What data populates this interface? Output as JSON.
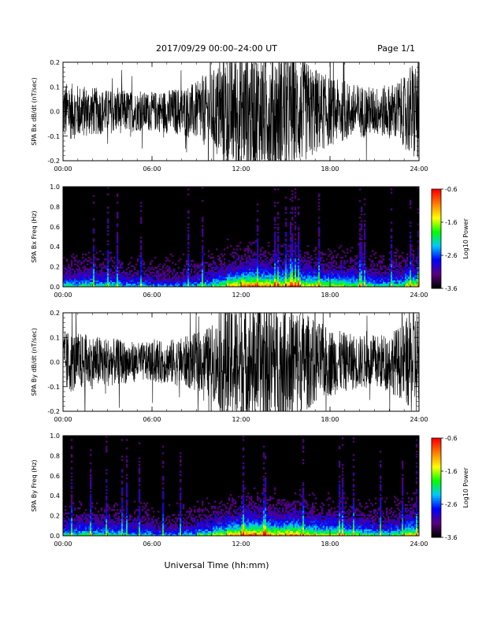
{
  "header": {
    "title": "2017/09/29  00:00–24:00 UT",
    "page": "Page 1/1"
  },
  "chart_data": [
    {
      "type": "line",
      "ylabel": "SPA Bx dB/dt (nT/sec)",
      "ylim": [
        -0.2,
        0.2
      ],
      "yticks": [
        "0.2",
        "0.1",
        "0.0",
        "-0.1",
        "-0.2"
      ],
      "xlim_hours": [
        0,
        24
      ],
      "xticks": [
        "00:00",
        "06:00",
        "12:00",
        "18:00",
        "24:00"
      ],
      "color": "#000000",
      "envelope": {
        "x_hours": [
          0,
          1,
          2,
          3,
          4,
          5,
          6,
          7,
          8,
          9,
          10,
          10.5,
          11,
          12,
          13,
          14,
          15,
          16,
          17,
          18,
          19,
          20,
          21,
          22,
          23,
          23.5,
          24
        ],
        "amplitude": [
          0.12,
          0.11,
          0.1,
          0.09,
          0.09,
          0.08,
          0.08,
          0.09,
          0.1,
          0.12,
          0.16,
          0.2,
          0.25,
          0.25,
          0.25,
          0.25,
          0.25,
          0.22,
          0.18,
          0.14,
          0.12,
          0.11,
          0.1,
          0.11,
          0.14,
          0.2,
          0.22
        ]
      }
    },
    {
      "type": "heatmap",
      "ylabel": "SPA Bx Freq (Hz)",
      "ylim": [
        0.0,
        1.0
      ],
      "yticks": [
        "1.0",
        "0.8",
        "0.6",
        "0.4",
        "0.2",
        "0.0"
      ],
      "xlim_hours": [
        0,
        24
      ],
      "xticks": [
        "00:00",
        "06:00",
        "12:00",
        "18:00",
        "24:00"
      ],
      "colorbar": {
        "label": "Log10 Power",
        "ticks": [
          "-0.6",
          "-1.6",
          "-2.6",
          "-3.6"
        ],
        "range": [
          -3.6,
          -0.6
        ],
        "colors": [
          "#000000",
          "#5a0080",
          "#0000ff",
          "#00c8ff",
          "#00ff00",
          "#ffff00",
          "#ff8000",
          "#ff0000"
        ]
      },
      "activity_by_hour": [
        0.3,
        0.35,
        0.3,
        0.3,
        0.25,
        0.25,
        0.2,
        0.2,
        0.25,
        0.3,
        0.4,
        0.55,
        0.65,
        0.6,
        0.55,
        0.6,
        0.5,
        0.45,
        0.45,
        0.4,
        0.35,
        0.3,
        0.35,
        0.5
      ]
    },
    {
      "type": "line",
      "ylabel": "SPA By dB/dt (nT/sec)",
      "ylim": [
        -0.2,
        0.2
      ],
      "yticks": [
        "0.2",
        "0.1",
        "0.0",
        "-0.1",
        "-0.2"
      ],
      "xlim_hours": [
        0,
        24
      ],
      "xticks": [
        "00:00",
        "06:00",
        "12:00",
        "18:00",
        "24:00"
      ],
      "color": "#000000",
      "envelope": {
        "x_hours": [
          0,
          1,
          2,
          3,
          4,
          5,
          6,
          7,
          8,
          9,
          10,
          10.5,
          11,
          12,
          13,
          14,
          15,
          16,
          17,
          18,
          19,
          20,
          21,
          22,
          23,
          23.5,
          24
        ],
        "amplitude": [
          0.13,
          0.12,
          0.11,
          0.1,
          0.09,
          0.08,
          0.08,
          0.09,
          0.1,
          0.12,
          0.15,
          0.18,
          0.25,
          0.25,
          0.25,
          0.25,
          0.25,
          0.22,
          0.17,
          0.14,
          0.12,
          0.11,
          0.11,
          0.12,
          0.16,
          0.22,
          0.24
        ]
      }
    },
    {
      "type": "heatmap",
      "ylabel": "SPA By Freq (Hz)",
      "ylim": [
        0.0,
        1.0
      ],
      "yticks": [
        "1.0",
        "0.8",
        "0.6",
        "0.4",
        "0.2",
        "0.0"
      ],
      "xlim_hours": [
        0,
        24
      ],
      "xticks": [
        "00:00",
        "06:00",
        "12:00",
        "18:00",
        "24:00"
      ],
      "colorbar": {
        "label": "Log10 Power",
        "ticks": [
          "-0.6",
          "-1.6",
          "-2.6",
          "-3.6"
        ],
        "range": [
          -3.6,
          -0.6
        ],
        "colors": [
          "#000000",
          "#5a0080",
          "#0000ff",
          "#00c8ff",
          "#00ff00",
          "#ffff00",
          "#ff8000",
          "#ff0000"
        ]
      },
      "activity_by_hour": [
        0.3,
        0.35,
        0.3,
        0.3,
        0.25,
        0.25,
        0.2,
        0.2,
        0.25,
        0.35,
        0.45,
        0.55,
        0.65,
        0.6,
        0.55,
        0.6,
        0.5,
        0.45,
        0.45,
        0.4,
        0.35,
        0.3,
        0.35,
        0.5
      ]
    }
  ],
  "footer": {
    "xlabel": "Universal Time (hh:mm)"
  }
}
